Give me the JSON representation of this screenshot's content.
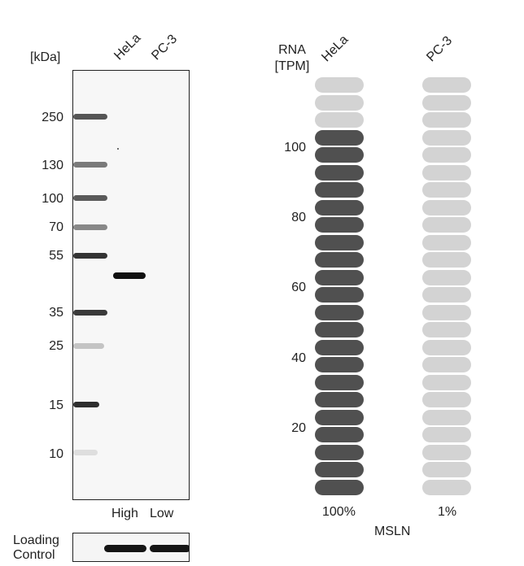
{
  "western_blot": {
    "unit_label": "[kDa]",
    "lanes": [
      "HeLa",
      "PC-3"
    ],
    "markers": [
      "250",
      "130",
      "100",
      "70",
      "55",
      "35",
      "25",
      "15",
      "10"
    ],
    "expression_levels": [
      "High",
      "Low"
    ],
    "loading_control_label_line1": "Loading",
    "loading_control_label_line2": "Control"
  },
  "rna_chart": {
    "title_line1": "RNA",
    "title_line2": "[TPM]",
    "gene": "MSLN",
    "colors": {
      "filled": "#505050",
      "empty": "#d3d3d3"
    },
    "chart_data": {
      "type": "bar",
      "categories": [
        "HeLa",
        "PC-3"
      ],
      "yticks": [
        "100",
        "80",
        "60",
        "40",
        "20"
      ],
      "ylabel": "RNA [TPM]",
      "total_segments": 24,
      "filled_segments": [
        21,
        0
      ],
      "percent_labels": [
        "100%",
        "1%"
      ]
    }
  }
}
